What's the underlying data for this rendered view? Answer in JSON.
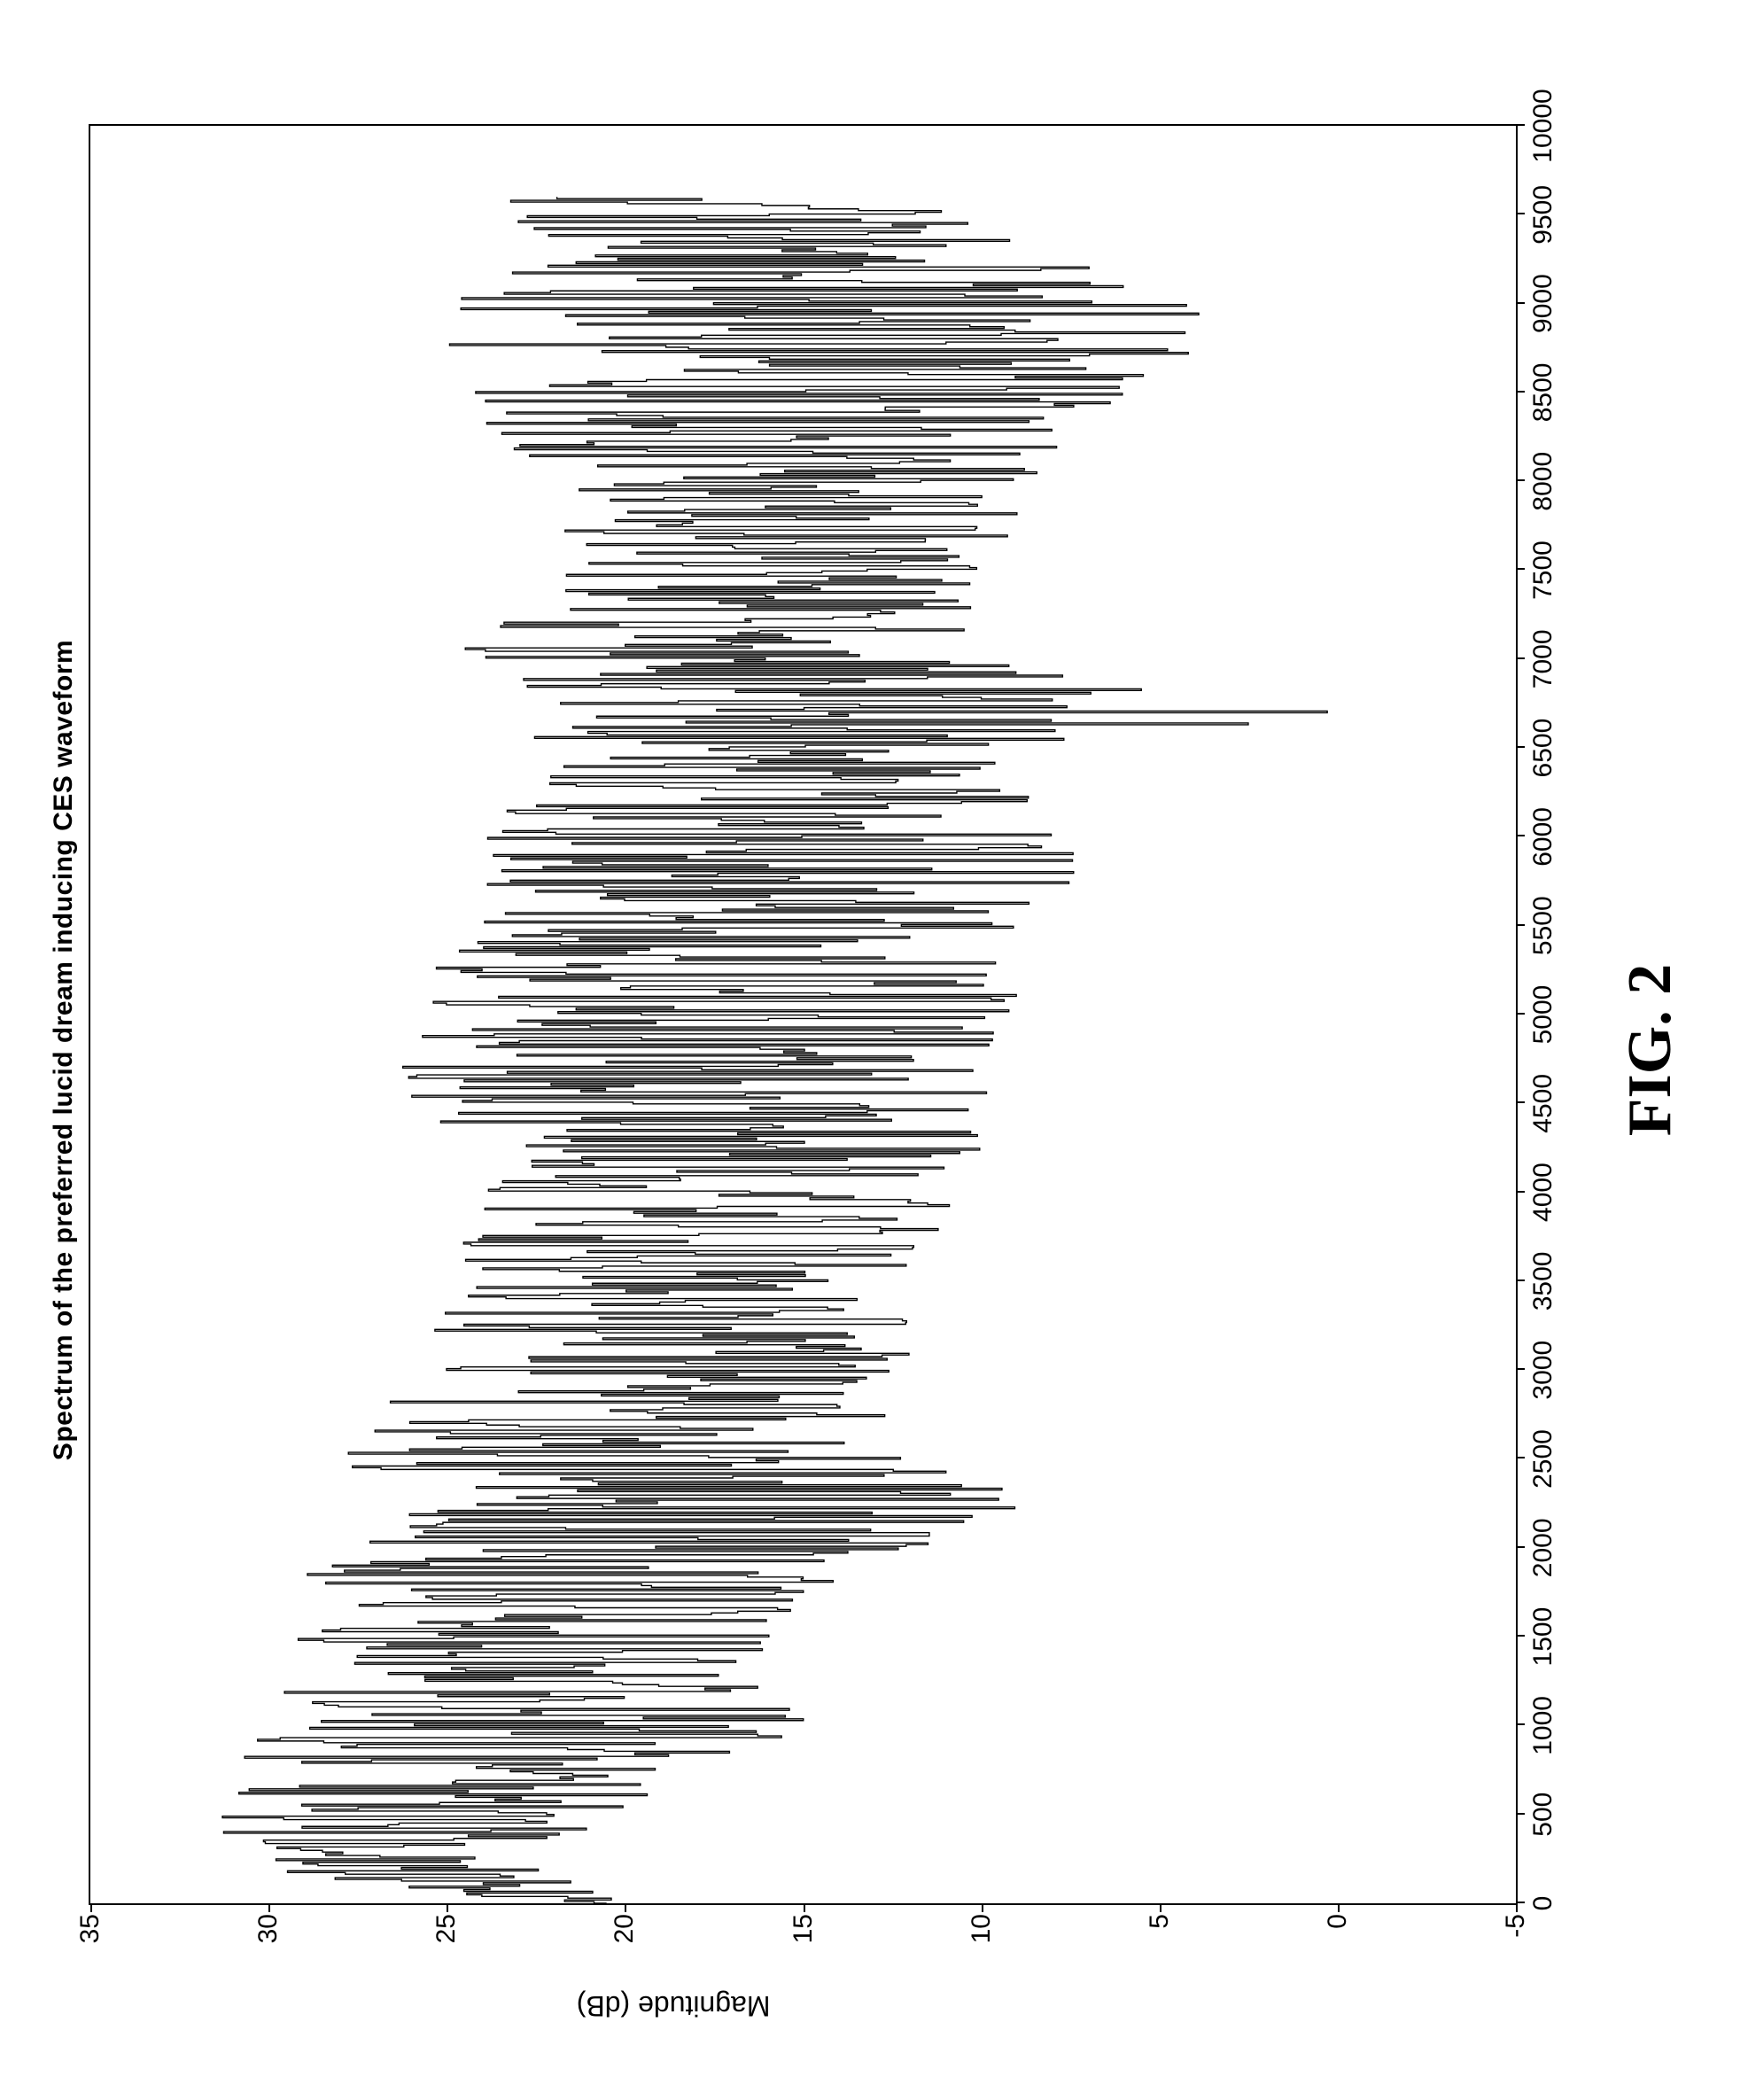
{
  "figure": {
    "caption": "FIG. 2"
  },
  "chart": {
    "type": "line",
    "title": "Spectrum of the preferred lucid dream inducing CES waveform",
    "title_fontsize": 30,
    "ylabel": "Magnitude (dB)",
    "label_fontsize": 32,
    "tick_fontsize": 30,
    "background_color": "#ffffff",
    "axis_color": "#000000",
    "line_color": "#000000",
    "line_width": 1.4,
    "xlim": [
      0,
      10000
    ],
    "ylim": [
      -5,
      35
    ],
    "xticks": [
      0,
      500,
      1000,
      1500,
      2000,
      2500,
      3000,
      3500,
      4000,
      4500,
      5000,
      5500,
      6000,
      6500,
      7000,
      7500,
      8000,
      8500,
      9000,
      9500,
      10000
    ],
    "xtick_labels": [
      "0",
      "500",
      "1000",
      "1500",
      "2000",
      "2500",
      "3000",
      "3500",
      "4000",
      "4500",
      "5000",
      "5500",
      "6000",
      "6500",
      "7000",
      "7500",
      "8000",
      "8500",
      "9000",
      "9500",
      "10000"
    ],
    "yticks": [
      -5,
      0,
      5,
      10,
      15,
      20,
      25,
      30,
      35
    ],
    "ytick_labels": [
      "-5",
      "0",
      "5",
      "10",
      "15",
      "20",
      "25",
      "30",
      "35"
    ],
    "series": {
      "n": 1000,
      "envelope": [
        [
          0,
          20,
          24
        ],
        [
          200,
          22,
          30
        ],
        [
          500,
          20,
          32
        ],
        [
          800,
          18,
          31
        ],
        [
          1000,
          14,
          30
        ],
        [
          1300,
          16,
          30
        ],
        [
          1700,
          14,
          29
        ],
        [
          2000,
          12,
          30
        ],
        [
          2200,
          6,
          27
        ],
        [
          2600,
          13,
          28
        ],
        [
          3000,
          12,
          26
        ],
        [
          3500,
          12,
          25
        ],
        [
          4000,
          10,
          24
        ],
        [
          4500,
          9,
          26
        ],
        [
          5000,
          9,
          27
        ],
        [
          5500,
          9,
          24
        ],
        [
          6000,
          6,
          24
        ],
        [
          6500,
          10,
          23
        ],
        [
          6700,
          -1,
          22
        ],
        [
          7000,
          10,
          25
        ],
        [
          7500,
          10,
          22
        ],
        [
          8000,
          8,
          22
        ],
        [
          8500,
          6,
          25
        ],
        [
          8800,
          3,
          25
        ],
        [
          9000,
          4,
          25
        ],
        [
          9300,
          8,
          22
        ],
        [
          9600,
          12,
          24
        ]
      ],
      "seed": 424242
    }
  }
}
